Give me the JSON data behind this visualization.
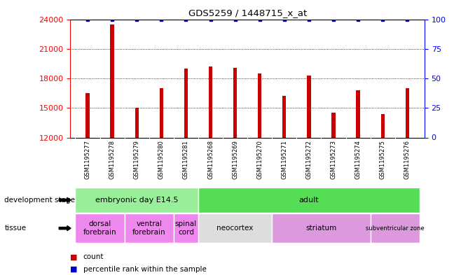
{
  "title": "GDS5259 / 1448715_x_at",
  "samples": [
    "GSM1195277",
    "GSM1195278",
    "GSM1195279",
    "GSM1195280",
    "GSM1195281",
    "GSM1195268",
    "GSM1195269",
    "GSM1195270",
    "GSM1195271",
    "GSM1195272",
    "GSM1195273",
    "GSM1195274",
    "GSM1195275",
    "GSM1195276"
  ],
  "bar_values": [
    16500,
    23500,
    15000,
    17000,
    19000,
    19200,
    19100,
    18500,
    16200,
    18300,
    14500,
    16800,
    14400,
    17000
  ],
  "percentile_values": [
    100,
    100,
    100,
    100,
    100,
    100,
    100,
    100,
    100,
    100,
    100,
    100,
    100,
    100
  ],
  "bar_color": "#cc0000",
  "percentile_color": "#0000cc",
  "ylim_left": [
    12000,
    24000
  ],
  "ylim_right": [
    0,
    100
  ],
  "yticks_left": [
    12000,
    15000,
    18000,
    21000,
    24000
  ],
  "yticks_right": [
    0,
    25,
    50,
    75,
    100
  ],
  "stage_bounds": [
    {
      "label": "embryonic day E14.5",
      "start": 0,
      "end": 4,
      "color": "#99ee99"
    },
    {
      "label": "adult",
      "start": 5,
      "end": 13,
      "color": "#55dd55"
    }
  ],
  "tissue_info": [
    {
      "label": "dorsal\nforebrain",
      "start": 0,
      "end": 1,
      "color": "#ee88ee"
    },
    {
      "label": "ventral\nforebrain",
      "start": 2,
      "end": 3,
      "color": "#ee88ee"
    },
    {
      "label": "spinal\ncord",
      "start": 4,
      "end": 4,
      "color": "#ee88ee"
    },
    {
      "label": "neocortex",
      "start": 5,
      "end": 7,
      "color": "#dddddd"
    },
    {
      "label": "striatum",
      "start": 8,
      "end": 11,
      "color": "#dd99dd"
    },
    {
      "label": "subventricular zone",
      "start": 12,
      "end": 13,
      "color": "#dd99dd"
    }
  ],
  "bg_color": "#ffffff",
  "xtick_bg_color": "#cccccc",
  "bar_width": 0.15,
  "label_dev_stage": "development stage",
  "label_tissue": "tissue",
  "legend_count": "count",
  "legend_pct": "percentile rank within the sample"
}
